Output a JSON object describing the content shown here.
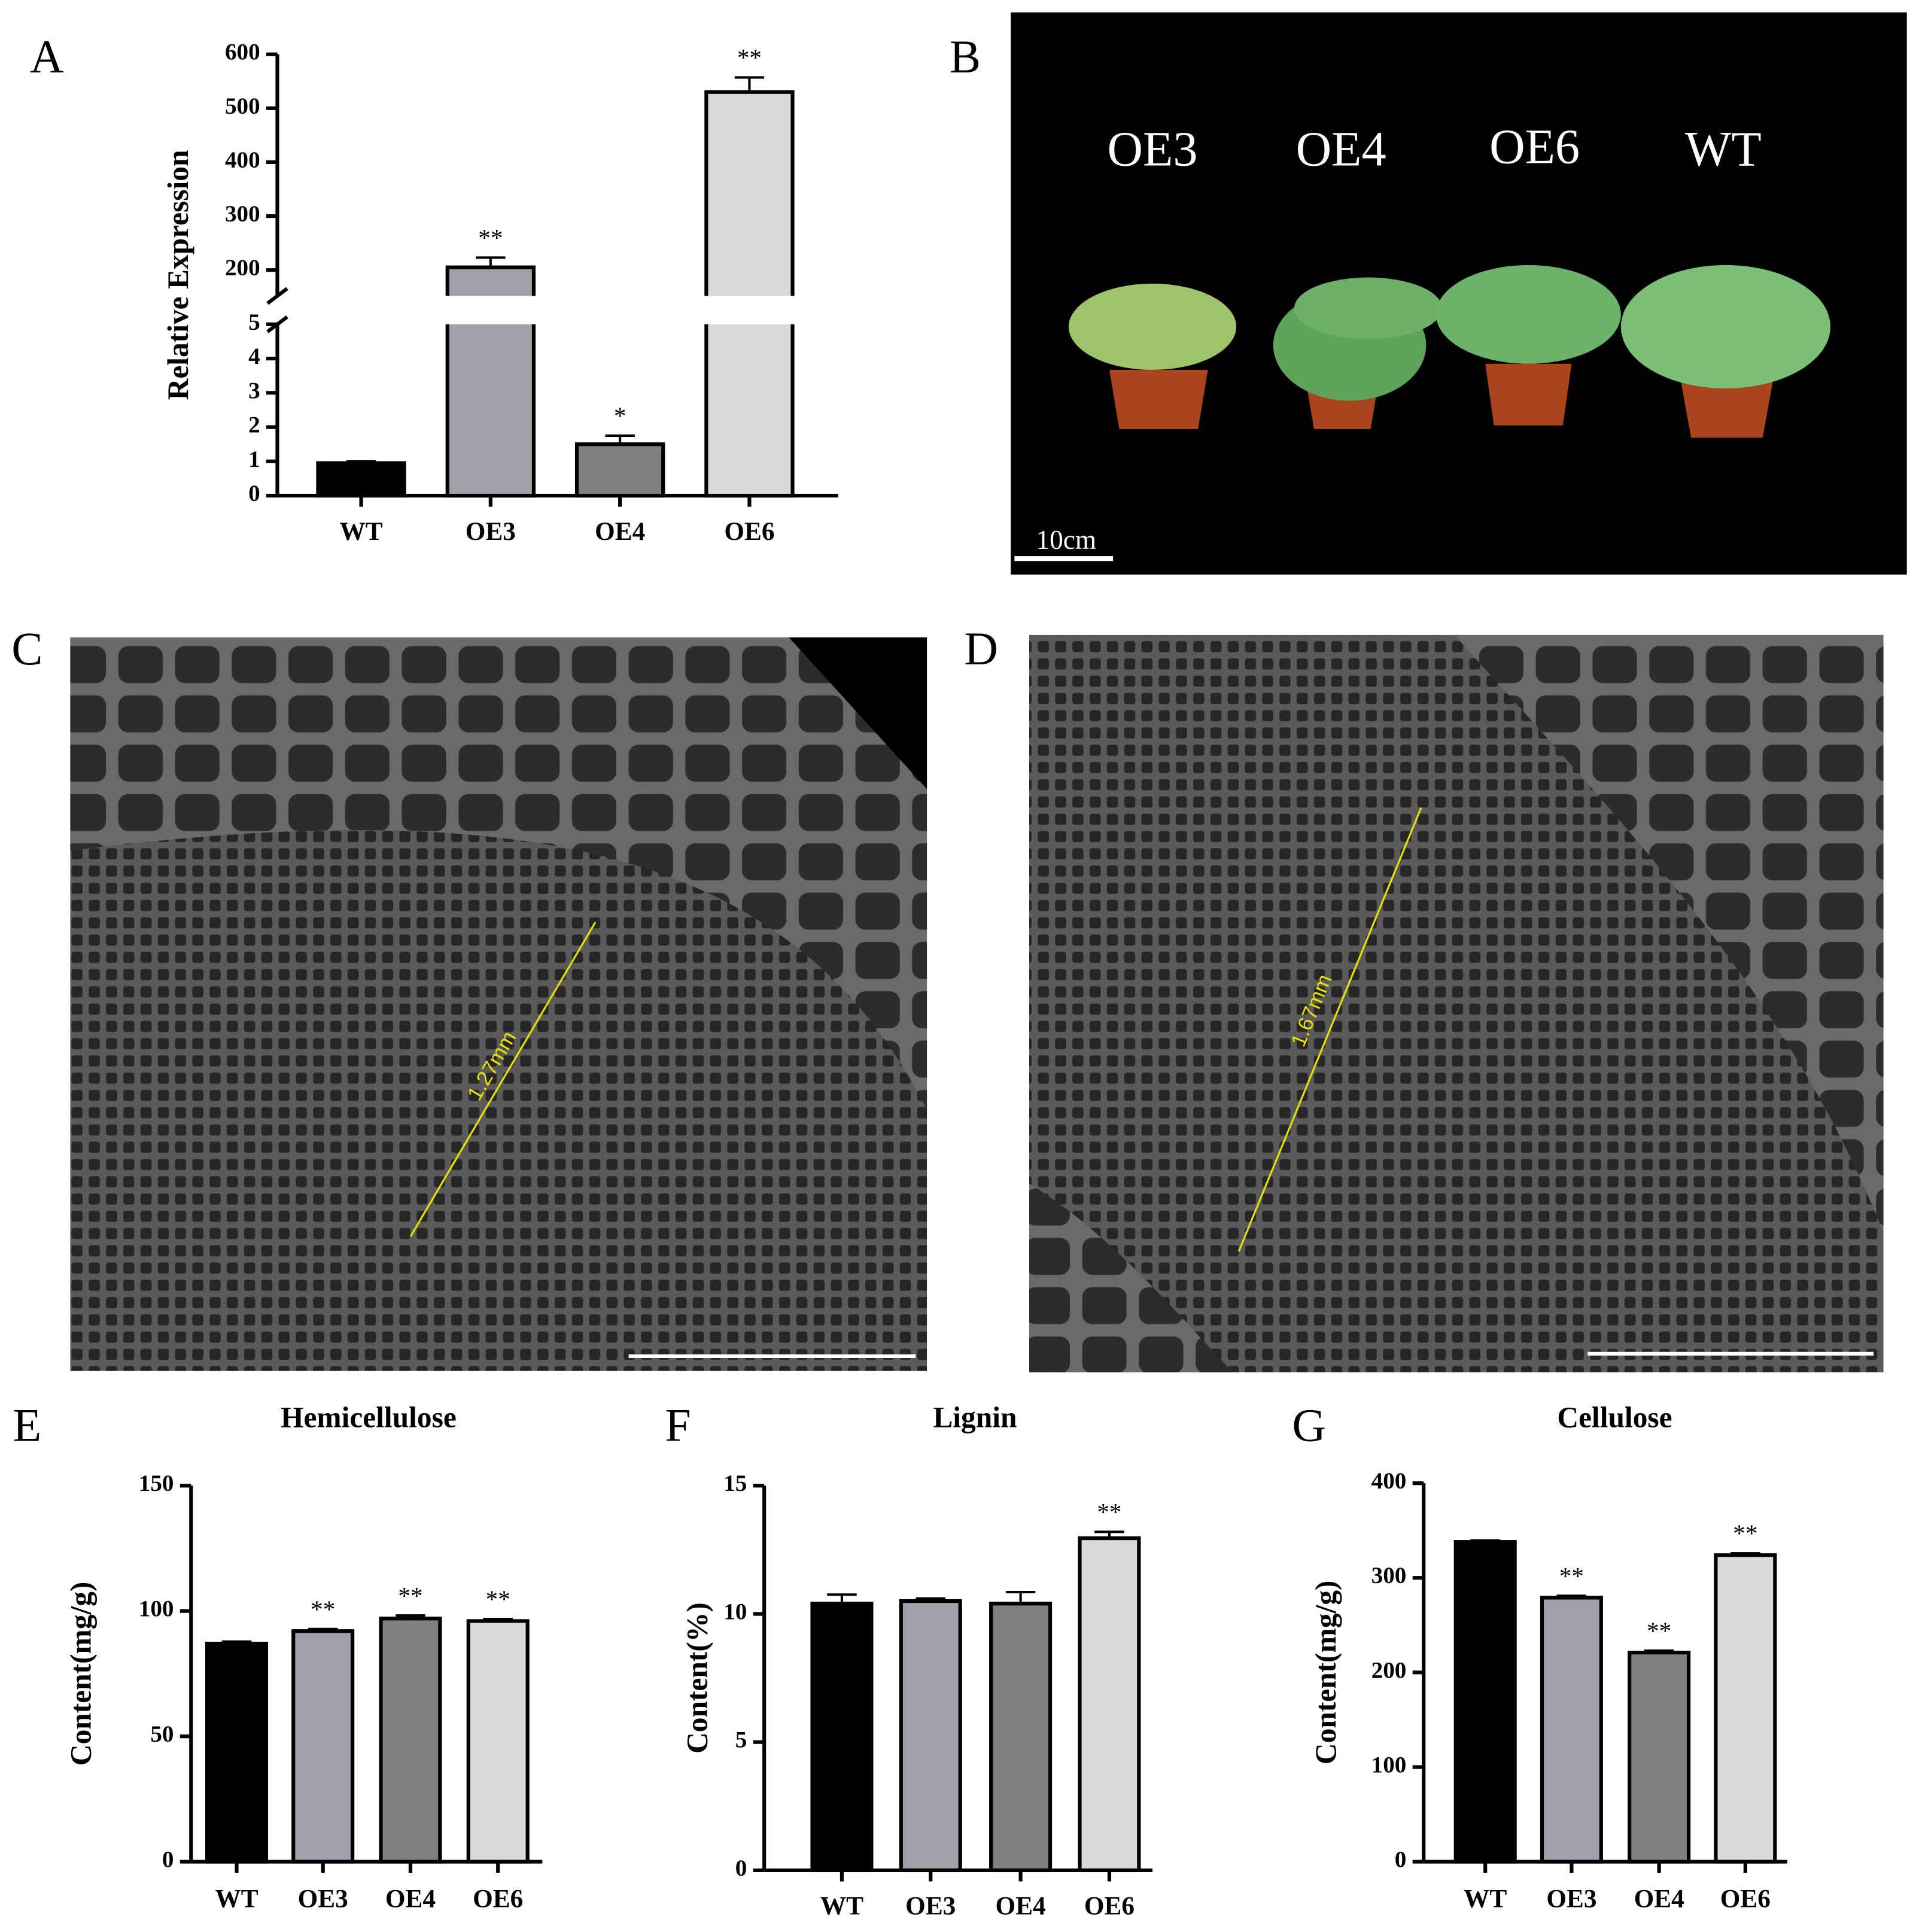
{
  "chart_data": [
    {
      "type": "bar",
      "panel_label": "A",
      "y_label": "Relative Expression",
      "categories": [
        "WT",
        "OE3",
        "OE4",
        "OE6"
      ],
      "values": [
        0.95,
        205,
        1.5,
        530
      ],
      "errors": [
        0.05,
        18,
        0.25,
        27
      ],
      "annotations": [
        null,
        "**",
        "*",
        "**"
      ],
      "colors": [
        "#000000",
        "#a0a0a8",
        "#808080",
        "#d9d9d9"
      ],
      "ylim": [
        0,
        600
      ],
      "ybreak": [
        5,
        200
      ],
      "yticks": [
        0,
        1,
        2,
        3,
        4,
        5,
        200,
        300,
        400,
        500,
        600
      ]
    },
    {
      "type": "bar",
      "panel_label": "E",
      "title": "Hemicellulose",
      "y_label": "Content(mg/g)",
      "categories": [
        "WT",
        "OE3",
        "OE4",
        "OE6"
      ],
      "values": [
        87,
        92,
        97,
        96
      ],
      "errors": [
        0.8,
        0.8,
        1.2,
        0.8
      ],
      "annotations": [
        null,
        "**",
        "**",
        "**"
      ],
      "colors": [
        "#000000",
        "#a0a0a8",
        "#808080",
        "#d9d9d9"
      ],
      "ylim": [
        0,
        150
      ],
      "yticks": [
        0,
        50,
        100,
        150
      ]
    },
    {
      "type": "bar",
      "panel_label": "F",
      "title": "Lignin",
      "y_label": "Content(%)",
      "categories": [
        "WT",
        "OE3",
        "OE4",
        "OE6"
      ],
      "values": [
        10.4,
        10.5,
        10.4,
        12.95
      ],
      "errors": [
        0.35,
        0.1,
        0.45,
        0.25
      ],
      "annotations": [
        null,
        null,
        null,
        "**"
      ],
      "colors": [
        "#000000",
        "#a0a0a8",
        "#808080",
        "#d9d9d9"
      ],
      "ylim": [
        0,
        15
      ],
      "yticks": [
        0,
        5,
        10,
        15
      ]
    },
    {
      "type": "bar",
      "panel_label": "G",
      "title": "Cellulose",
      "y_label": "Content(mg/g)",
      "categories": [
        "WT",
        "OE3",
        "OE4",
        "OE6"
      ],
      "values": [
        338,
        279,
        221,
        324
      ],
      "errors": [
        1.5,
        2,
        2,
        2
      ],
      "annotations": [
        null,
        "**",
        "**",
        "**"
      ],
      "colors": [
        "#000000",
        "#a0a0a8",
        "#808080",
        "#d9d9d9"
      ],
      "ylim": [
        0,
        400
      ],
      "yticks": [
        0,
        100,
        200,
        300,
        400
      ]
    }
  ],
  "photos": [
    {
      "panel_label": "B",
      "labels": [
        "OE3",
        "OE4",
        "OE6",
        "WT"
      ],
      "scale_bar_label": "10cm"
    },
    {
      "panel_label": "C",
      "measurement": "1.27mm"
    },
    {
      "panel_label": "D",
      "measurement": "1.67mm"
    }
  ]
}
